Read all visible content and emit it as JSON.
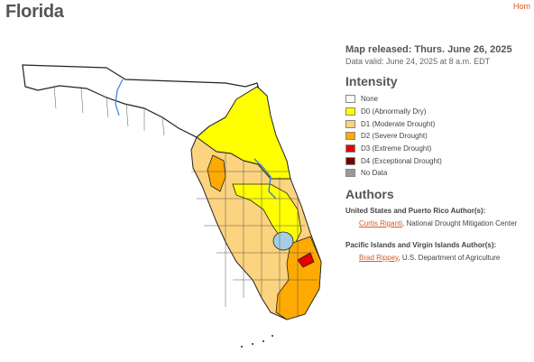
{
  "page": {
    "title": "Florida",
    "home_link": "Hom"
  },
  "map": {
    "region": "Florida",
    "counties_shown": true
  },
  "info": {
    "released": "Map released: Thurs. June 26, 2025",
    "valid": "Data valid: June 24, 2025 at 8 a.m. EDT"
  },
  "intensity": {
    "heading": "Intensity",
    "items": [
      {
        "label": "None",
        "color": "#ffffff"
      },
      {
        "label": "D0 (Abnormally Dry)",
        "color": "#ffff00"
      },
      {
        "label": "D1 (Moderate Drought)",
        "color": "#fcd37f"
      },
      {
        "label": "D2 (Severe Drought)",
        "color": "#ffaa00"
      },
      {
        "label": "D3 (Extreme Drought)",
        "color": "#e60000"
      },
      {
        "label": "D4 (Exceptional Drought)",
        "color": "#730000"
      },
      {
        "label": "No Data",
        "color": "#999999"
      }
    ]
  },
  "authors": {
    "heading": "Authors",
    "groups": [
      {
        "title": "United States and Puerto Rico Author(s):",
        "name": "Curtis Riganti",
        "org": ", National Drought Mitigation Center"
      },
      {
        "title": "Pacific Islands and Virgin Islands Author(s):",
        "name": "Brad Rippey",
        "org": ", U.S. Department of Agriculture"
      }
    ]
  },
  "colors": {
    "accent": "#d85a1f",
    "water": "#a6cee3"
  }
}
